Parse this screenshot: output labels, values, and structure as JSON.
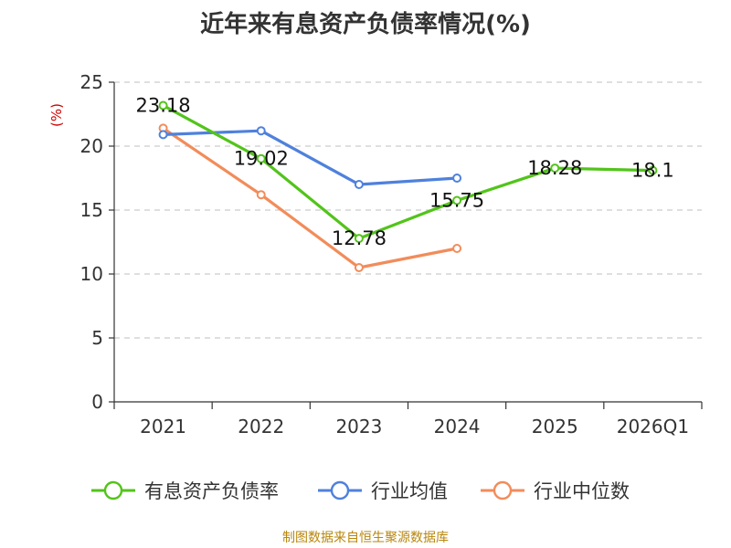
{
  "chart_data": {
    "type": "line",
    "title": "近年来有息资产负债率情况(%)",
    "y_unit": "(%)",
    "categories": [
      "2021",
      "2022",
      "2023",
      "2024",
      "2025",
      "2026Q1"
    ],
    "ylim": [
      0,
      25
    ],
    "yticks": [
      0,
      5,
      10,
      15,
      20,
      25
    ],
    "grid": true,
    "legend_position": "bottom",
    "series": [
      {
        "name": "有息资产负债率",
        "color": "#52c41a",
        "values": [
          23.18,
          19.02,
          12.78,
          15.75,
          18.28,
          18.1
        ],
        "data_labels": [
          "23.18",
          "19.02",
          "12.78",
          "15.75",
          "18.28",
          "18.1"
        ]
      },
      {
        "name": "行业均值",
        "color": "#4f81dc",
        "values": [
          20.9,
          21.2,
          17.0,
          17.5,
          null,
          null
        ]
      },
      {
        "name": "行业中位数",
        "color": "#f28c5a",
        "values": [
          21.4,
          16.2,
          10.5,
          12.0,
          null,
          null
        ]
      }
    ]
  },
  "footer": {
    "source": "制图数据来自恒生聚源数据库"
  },
  "colors": {
    "unit_label": "#cc0000",
    "grid": "#cccccc",
    "axis": "#333333"
  }
}
